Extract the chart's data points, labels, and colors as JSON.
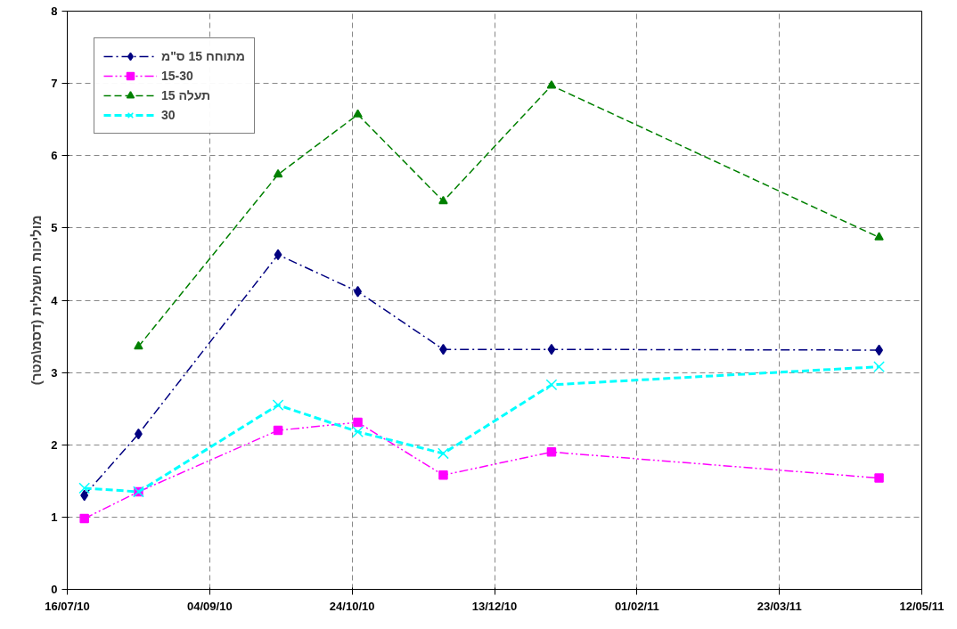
{
  "chart_data": {
    "type": "line",
    "ylabel": "מוליכות חשמלית (דסמ\\מטר)",
    "x": [
      "2010-07-22",
      "2010-08-10",
      "2010-09-28",
      "2010-10-26",
      "2010-11-25",
      "2011-01-02",
      "2011-04-27"
    ],
    "xlim": [
      "2010-07-16",
      "2011-05-12"
    ],
    "xticks": [
      {
        "value": "2010-07-16",
        "label": "16/07/10"
      },
      {
        "value": "2010-09-04",
        "label": "04/09/10"
      },
      {
        "value": "2010-10-24",
        "label": "24/10/10"
      },
      {
        "value": "2010-12-13",
        "label": "13/12/10"
      },
      {
        "value": "2011-02-01",
        "label": "01/02/11"
      },
      {
        "value": "2011-03-23",
        "label": "23/03/11"
      },
      {
        "value": "2011-05-12",
        "label": "12/05/11"
      }
    ],
    "ylim": [
      0,
      8
    ],
    "yticks": [
      0,
      1,
      2,
      3,
      4,
      5,
      6,
      7,
      8
    ],
    "grid": true,
    "legend": "top left",
    "series": [
      {
        "name": "מתוחח 15 ס\"מ",
        "color": "#000080",
        "marker": "diamond",
        "line_style": "dashdot",
        "values": [
          1.3,
          2.15,
          4.63,
          4.12,
          3.32,
          3.32,
          3.31
        ]
      },
      {
        "name": "15-30",
        "color": "#ff00ff",
        "marker": "square",
        "line_style": "dashdotdot",
        "values": [
          0.98,
          1.35,
          2.2,
          2.31,
          1.58,
          1.9,
          1.54
        ]
      },
      {
        "name": "תעלה 15",
        "color": "#008000",
        "marker": "triangle",
        "line_style": "dashed",
        "values": [
          null,
          3.36,
          5.74,
          6.57,
          5.37,
          6.97,
          4.87
        ]
      },
      {
        "name": "30",
        "color": "#00ffff",
        "marker": "x",
        "line_style": "dashed",
        "values": [
          1.4,
          1.35,
          2.55,
          2.18,
          1.88,
          2.83,
          3.08
        ]
      }
    ]
  }
}
